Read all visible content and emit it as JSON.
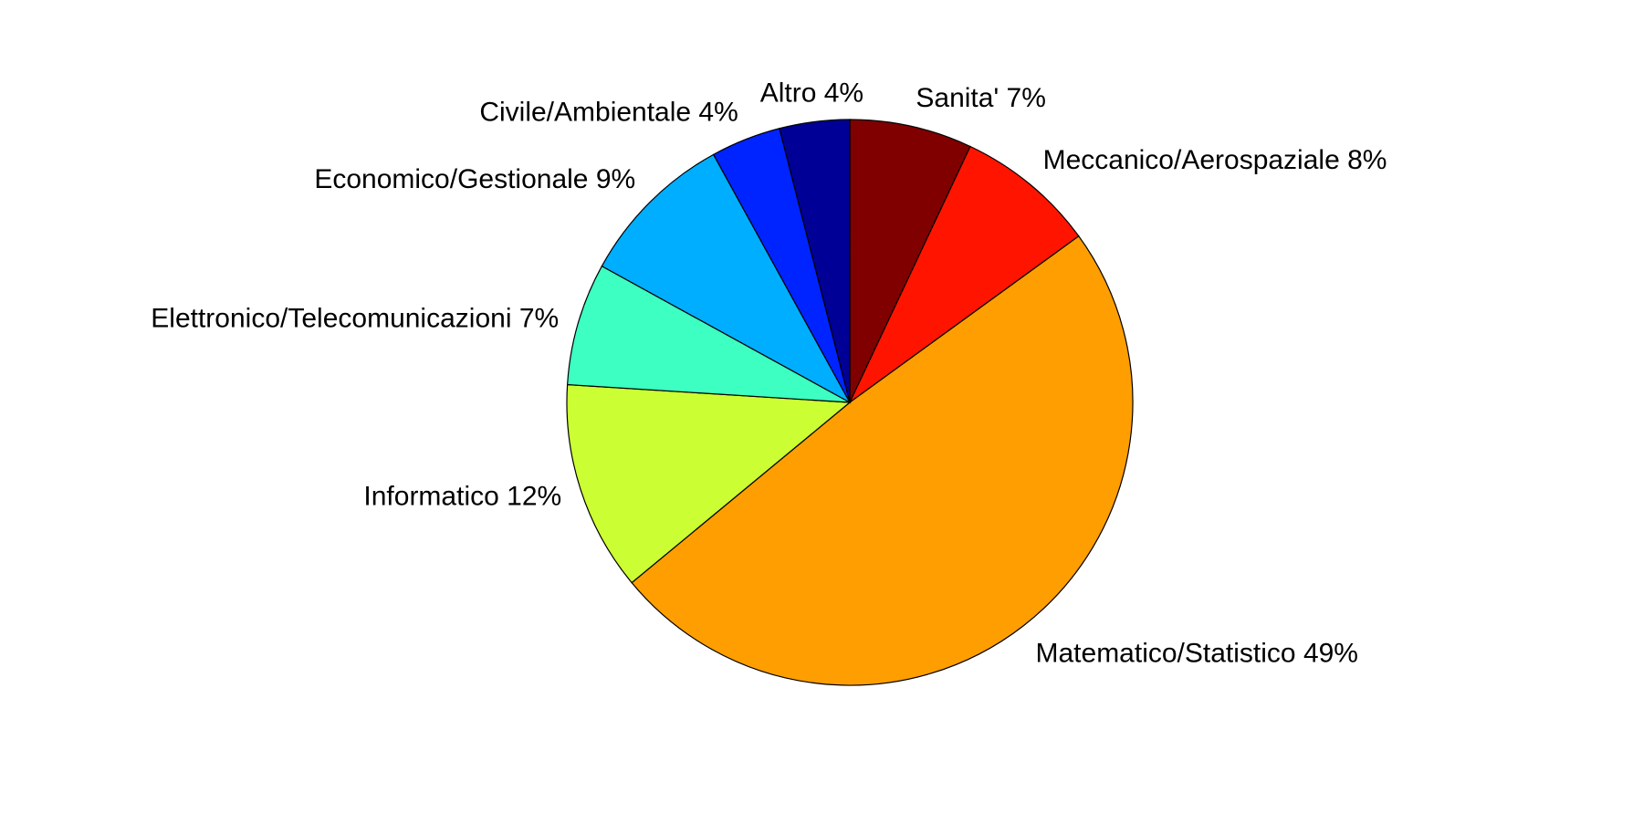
{
  "chart_data": {
    "type": "pie",
    "title": "",
    "start": "top",
    "direction": "clockwise",
    "legend": "none",
    "slices": [
      {
        "label": "Sanita' 7%",
        "value": 7,
        "color": "#800000"
      },
      {
        "label": "Meccanico/Aerospaziale 8%",
        "value": 8,
        "color": "#ff1400"
      },
      {
        "label": "Matematico/Statistico 49%",
        "value": 49,
        "color": "#ff9e00"
      },
      {
        "label": "Informatico 12%",
        "value": 12,
        "color": "#ccff33"
      },
      {
        "label": "Elettronico/Telecomunicazioni 7%",
        "value": 7,
        "color": "#3dffc2"
      },
      {
        "label": "Economico/Gestionale 9%",
        "value": 9,
        "color": "#00aeff"
      },
      {
        "label": "Civile/Ambientale 4%",
        "value": 4,
        "color": "#0024ff"
      },
      {
        "label": "Altro 4%",
        "value": 4,
        "color": "#000096"
      }
    ]
  }
}
